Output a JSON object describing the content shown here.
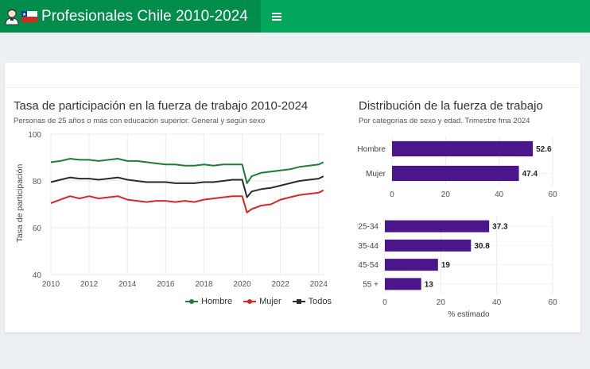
{
  "header": {
    "title": "Profesionales Chile 2010-2024",
    "menu_icon": "hamburger-menu-icon",
    "logo_icons": [
      "professional-avatar-icon",
      "chile-flag-icon"
    ]
  },
  "colors": {
    "header_green": "#00a65a",
    "brand_green": "#008d4c",
    "hombre": "#1e7b3a",
    "mujer": "#d62728",
    "todos": "#2b2b2b",
    "bars": "#4b168c"
  },
  "left_chart": {
    "title": "Tasa de participación en la fuerza de trabajo 2010-2024",
    "subtitle": "Personas de 25 años o más con educación superior. General y según sexo"
  },
  "right_chart": {
    "title": "Distribución de la fuerza de trabajo",
    "subtitle": "Por categorias de sexo y edad. Trimestre fma 2024"
  },
  "legend": [
    {
      "name": "Hombre",
      "color": "#1e7b3a"
    },
    {
      "name": "Mujer",
      "color": "#d62728"
    },
    {
      "name": "Todos",
      "color": "#2b2b2b"
    }
  ],
  "chart_data": [
    {
      "type": "line",
      "title": "Tasa de participación en la fuerza de trabajo 2010-2024",
      "subtitle": "Personas de 25 años o más con educación superior. General y según sexo",
      "xlabel": "",
      "ylabel": "Tasa de participación",
      "xlim": [
        2010,
        2024.3
      ],
      "ylim": [
        40,
        100
      ],
      "xticks": [
        2010,
        2012,
        2014,
        2016,
        2018,
        2020,
        2022,
        2024
      ],
      "yticks": [
        40,
        60,
        80,
        100
      ],
      "grid": true,
      "legend_position": "bottom-right",
      "x": [
        2010.0,
        2010.5,
        2011.0,
        2011.5,
        2012.0,
        2012.5,
        2013.0,
        2013.5,
        2014.0,
        2014.5,
        2015.0,
        2015.5,
        2016.0,
        2016.5,
        2017.0,
        2017.5,
        2018.0,
        2018.5,
        2019.0,
        2019.5,
        2020.0,
        2020.25,
        2020.5,
        2021.0,
        2021.5,
        2022.0,
        2022.5,
        2023.0,
        2023.5,
        2024.0,
        2024.25
      ],
      "series": [
        {
          "name": "Hombre",
          "values": [
            88.0,
            88.5,
            89.5,
            89.0,
            89.0,
            88.5,
            89.0,
            89.5,
            88.5,
            88.5,
            88.0,
            87.5,
            87.0,
            87.0,
            86.5,
            86.5,
            87.0,
            86.5,
            87.0,
            87.0,
            87.0,
            79.0,
            82.0,
            83.5,
            84.0,
            84.5,
            85.0,
            86.0,
            86.5,
            87.0,
            88.0
          ]
        },
        {
          "name": "Mujer",
          "values": [
            70.5,
            72.0,
            73.5,
            72.5,
            73.5,
            72.5,
            73.0,
            73.5,
            72.0,
            71.5,
            71.0,
            71.5,
            71.5,
            71.0,
            71.5,
            71.0,
            72.0,
            72.5,
            73.0,
            73.5,
            73.5,
            66.5,
            68.0,
            69.5,
            70.0,
            72.0,
            73.0,
            74.0,
            74.5,
            75.0,
            76.0
          ]
        },
        {
          "name": "Todos",
          "values": [
            79.5,
            80.5,
            81.5,
            81.0,
            81.0,
            80.5,
            81.0,
            81.5,
            80.5,
            80.0,
            79.5,
            79.5,
            79.5,
            79.0,
            79.0,
            79.0,
            79.5,
            79.5,
            80.0,
            80.5,
            80.5,
            73.0,
            75.5,
            76.5,
            77.0,
            78.0,
            79.0,
            80.0,
            80.5,
            81.0,
            82.0
          ]
        }
      ]
    },
    {
      "type": "bar",
      "orientation": "horizontal",
      "categories": [
        "Hombre",
        "Mujer"
      ],
      "values": [
        52.6,
        47.4
      ],
      "labels": [
        "52.6",
        "47.4"
      ],
      "xlim": [
        0,
        60
      ],
      "xticks": [
        0,
        20,
        40,
        60
      ],
      "xlabel": "",
      "grid": true
    },
    {
      "type": "bar",
      "orientation": "horizontal",
      "categories": [
        "25-34",
        "35-44",
        "45-54",
        "55 +"
      ],
      "values": [
        37.3,
        30.8,
        19,
        13
      ],
      "labels": [
        "37.3",
        "30.8",
        "19",
        "13"
      ],
      "xlim": [
        0,
        60
      ],
      "xticks": [
        0,
        20,
        40,
        60
      ],
      "xlabel": "% estimado",
      "grid": true
    }
  ]
}
